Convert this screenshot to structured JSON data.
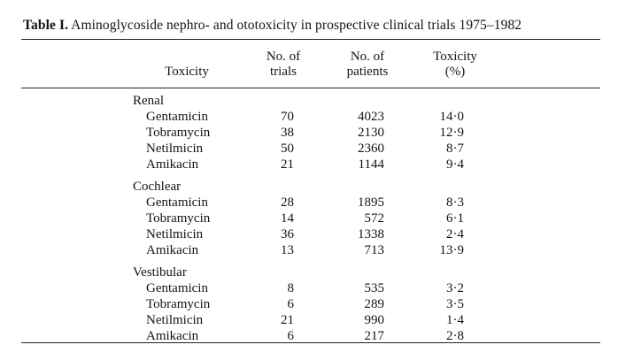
{
  "caption": {
    "label": "Table I.",
    "text": " Aminoglycoside nephro- and ototoxicity in prospective clinical trials 1975–1982"
  },
  "headers": {
    "toxicity": "Toxicity",
    "trials_1": "No. of",
    "trials_2": "trials",
    "patients_1": "No. of",
    "patients_2": "patients",
    "pct_1": "Toxicity",
    "pct_2": "(%)"
  },
  "groups": [
    {
      "name": "Renal",
      "rows": [
        {
          "drug": "Gentamicin",
          "trials": "70",
          "patients": "4023",
          "toxicity": "14·0"
        },
        {
          "drug": "Tobramycin",
          "trials": "38",
          "patients": "2130",
          "toxicity": "12·9"
        },
        {
          "drug": "Netilmicin",
          "trials": "50",
          "patients": "2360",
          "toxicity": "8·7"
        },
        {
          "drug": "Amikacin",
          "trials": "21",
          "patients": "1144",
          "toxicity": "9·4"
        }
      ]
    },
    {
      "name": "Cochlear",
      "rows": [
        {
          "drug": "Gentamicin",
          "trials": "28",
          "patients": "1895",
          "toxicity": "8·3"
        },
        {
          "drug": "Tobramycin",
          "trials": "14",
          "patients": "572",
          "toxicity": "6·1"
        },
        {
          "drug": "Netilmicin",
          "trials": "36",
          "patients": "1338",
          "toxicity": "2·4"
        },
        {
          "drug": "Amikacin",
          "trials": "13",
          "patients": "713",
          "toxicity": "13·9"
        }
      ]
    },
    {
      "name": "Vestibular",
      "rows": [
        {
          "drug": "Gentamicin",
          "trials": "8",
          "patients": "535",
          "toxicity": "3·2"
        },
        {
          "drug": "Tobramycin",
          "trials": "6",
          "patients": "289",
          "toxicity": "3·5"
        },
        {
          "drug": "Netilmicin",
          "trials": "21",
          "patients": "990",
          "toxicity": "1·4"
        },
        {
          "drug": "Amikacin",
          "trials": "6",
          "patients": "217",
          "toxicity": "2·8"
        }
      ]
    }
  ]
}
